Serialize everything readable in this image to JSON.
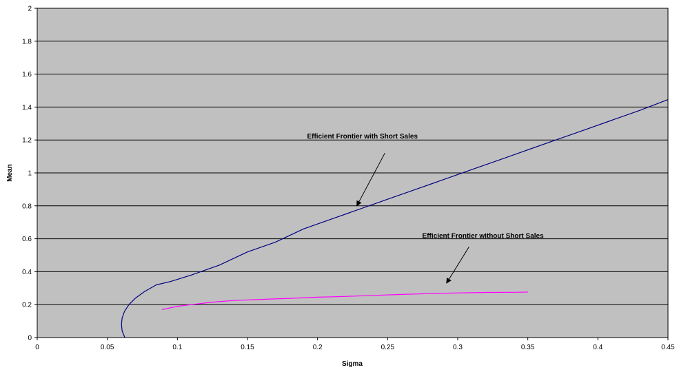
{
  "chart_data": {
    "type": "line",
    "title": "",
    "xlabel": "Sigma",
    "ylabel": "Mean",
    "xlim": [
      0,
      0.45
    ],
    "ylim": [
      0,
      2
    ],
    "x_ticks": [
      "0",
      "0.05",
      "0.1",
      "0.15",
      "0.2",
      "0.25",
      "0.3",
      "0.35",
      "0.4",
      "0.45"
    ],
    "y_ticks": [
      "0",
      "0.2",
      "0.4",
      "0.6",
      "0.8",
      "1",
      "1.2",
      "1.4",
      "1.6",
      "1.8",
      "2"
    ],
    "x_tick_values": [
      0,
      0.05,
      0.1,
      0.15,
      0.2,
      0.25,
      0.3,
      0.35,
      0.4,
      0.45
    ],
    "y_tick_values": [
      0,
      0.2,
      0.4,
      0.6,
      0.8,
      1,
      1.2,
      1.4,
      1.6,
      1.8,
      2
    ],
    "grid": "horizontal",
    "plot_background": "#c0c0c0",
    "legend": "none",
    "series": [
      {
        "color": "#000080",
        "points": [
          [
            0.0625,
            0
          ],
          [
            0.0606,
            0.04
          ],
          [
            0.0601,
            0.08
          ],
          [
            0.0606,
            0.12
          ],
          [
            0.0623,
            0.16
          ],
          [
            0.0654,
            0.2
          ],
          [
            0.0702,
            0.24
          ],
          [
            0.0766,
            0.28
          ],
          [
            0.085,
            0.32
          ],
          [
            0.095,
            0.34
          ],
          [
            0.11,
            0.38
          ],
          [
            0.13,
            0.44
          ],
          [
            0.15,
            0.52
          ],
          [
            0.17,
            0.58
          ],
          [
            0.19,
            0.66
          ],
          [
            0.21,
            0.72
          ],
          [
            0.23,
            0.78
          ],
          [
            0.25,
            0.84
          ],
          [
            0.27,
            0.9
          ],
          [
            0.29,
            0.96
          ],
          [
            0.31,
            1.02
          ],
          [
            0.33,
            1.08
          ],
          [
            0.35,
            1.14
          ],
          [
            0.37,
            1.2
          ],
          [
            0.39,
            1.26
          ],
          [
            0.41,
            1.32
          ],
          [
            0.43,
            1.38
          ],
          [
            0.45,
            1.445
          ]
        ]
      },
      {
        "color": "#ff00ff",
        "points": [
          [
            0.089,
            0.17
          ],
          [
            0.1,
            0.19
          ],
          [
            0.11,
            0.2
          ],
          [
            0.125,
            0.215
          ],
          [
            0.14,
            0.225
          ],
          [
            0.16,
            0.232
          ],
          [
            0.18,
            0.238
          ],
          [
            0.2,
            0.245
          ],
          [
            0.22,
            0.25
          ],
          [
            0.24,
            0.256
          ],
          [
            0.26,
            0.262
          ],
          [
            0.28,
            0.267
          ],
          [
            0.3,
            0.271
          ],
          [
            0.32,
            0.274
          ],
          [
            0.34,
            0.275
          ],
          [
            0.35,
            0.276
          ]
        ]
      }
    ],
    "annotations": [
      {
        "text": "Efficient Frontier with Short Sales",
        "anchor": [
          0.232,
          1.21
        ],
        "arrow_from": [
          0.248,
          1.12
        ],
        "arrow_to": [
          0.228,
          0.8
        ]
      },
      {
        "text": "Efficient Frontier without Short Sales",
        "anchor": [
          0.318,
          0.605
        ],
        "arrow_from": [
          0.308,
          0.55
        ],
        "arrow_to": [
          0.292,
          0.33
        ]
      }
    ]
  }
}
